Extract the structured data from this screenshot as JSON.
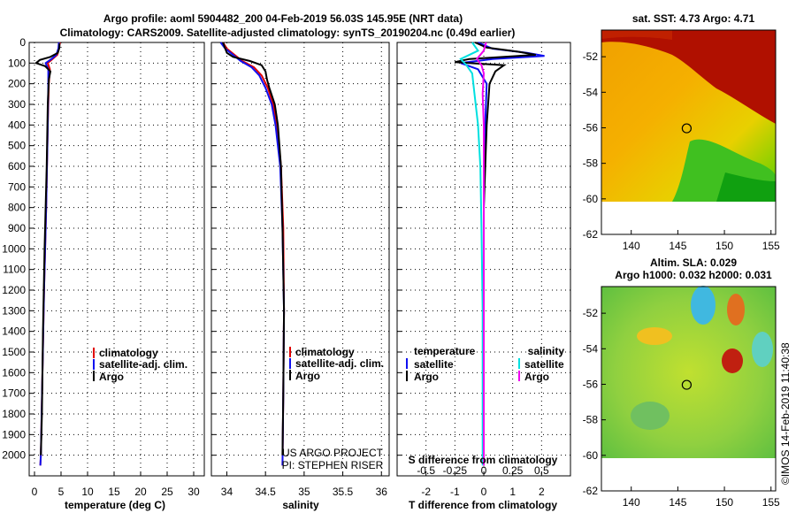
{
  "title_line1": "Argo profile: aoml 5904482_200 04-Feb-2019 56.03S 145.95E (NRT data)",
  "title_line2": "Climatology: CARS2009. Satellite-adjusted climatology: synTS_20190204.nc (0.49d earlier)",
  "credit_line1": "US ARGO PROJECT",
  "credit_line2": "PI: STEPHEN RISER",
  "watermark": "©IMOS 14-Feb-2019 11:40:38",
  "colors": {
    "climatology": "#e00000",
    "satellite": "#1010f0",
    "argo": "#000000",
    "sal_satellite": "#00e0e0",
    "sal_argo": "#f000f0"
  },
  "chart_data": [
    {
      "type": "line",
      "id": "temperature",
      "xlabel": "temperature (deg C)",
      "ylabel": "depth",
      "xlim": [
        -1,
        32
      ],
      "ylim": [
        0,
        2100
      ],
      "xticks": [
        0,
        5,
        10,
        15,
        20,
        25,
        30
      ],
      "yticks": [
        0,
        100,
        200,
        300,
        400,
        500,
        600,
        700,
        800,
        900,
        1000,
        1100,
        1200,
        1300,
        1400,
        1500,
        1600,
        1700,
        1800,
        1900,
        2000
      ],
      "legend": [
        "climatology",
        "satellite-adj. clim.",
        "Argo"
      ],
      "series": [
        {
          "name": "climatology",
          "depth": [
            0,
            30,
            60,
            80,
            100,
            130,
            200,
            400,
            800,
            1200,
            1600,
            2000,
            2050
          ],
          "values": [
            4.8,
            4.6,
            4.3,
            3.4,
            2.5,
            2.9,
            2.7,
            2.5,
            2.2,
            1.8,
            1.5,
            1.2,
            1.1
          ]
        },
        {
          "name": "satellite-adj. clim.",
          "depth": [
            0,
            30,
            60,
            80,
            100,
            130,
            200,
            400,
            800,
            1200,
            1600,
            2000,
            2050
          ],
          "values": [
            4.6,
            4.5,
            4.1,
            3.2,
            2.1,
            2.6,
            2.6,
            2.5,
            2.2,
            1.8,
            1.5,
            1.2,
            1.1
          ]
        },
        {
          "name": "Argo",
          "depth": [
            5,
            25,
            50,
            70,
            85,
            100,
            115,
            140,
            180,
            300,
            600,
            1000,
            1400,
            1800,
            2000
          ],
          "values": [
            4.7,
            4.7,
            4.4,
            3.0,
            1.0,
            0.3,
            2.0,
            3.0,
            2.7,
            2.5,
            2.3,
            1.9,
            1.6,
            1.4,
            1.2
          ]
        }
      ]
    },
    {
      "type": "line",
      "id": "salinity",
      "xlabel": "salinity",
      "ylabel": "depth",
      "xlim": [
        33.8,
        36.1
      ],
      "ylim": [
        0,
        2100
      ],
      "xticks": [
        34,
        34.5,
        35,
        35.5,
        36
      ],
      "legend": [
        "climatology",
        "satellite-adj. clim.",
        "Argo"
      ],
      "series": [
        {
          "name": "climatology",
          "depth": [
            0,
            30,
            60,
            90,
            120,
            160,
            220,
            300,
            400,
            600,
            900,
            1300,
            1700,
            2050
          ],
          "values": [
            33.95,
            34.0,
            34.1,
            34.2,
            34.35,
            34.45,
            34.53,
            34.6,
            34.65,
            34.7,
            34.73,
            34.74,
            34.73,
            34.72
          ]
        },
        {
          "name": "satellite-adj. clim.",
          "depth": [
            0,
            30,
            60,
            90,
            120,
            160,
            220,
            300,
            400,
            600,
            900,
            1300,
            1700,
            2050
          ],
          "values": [
            33.92,
            33.98,
            34.08,
            34.18,
            34.32,
            34.42,
            34.5,
            34.58,
            34.63,
            34.69,
            34.72,
            34.74,
            34.73,
            34.72
          ]
        },
        {
          "name": "Argo",
          "depth": [
            0,
            30,
            50,
            70,
            90,
            110,
            140,
            180,
            220,
            300,
            400,
            600,
            900,
            1300,
            1700,
            2000
          ],
          "values": [
            33.95,
            33.98,
            34.0,
            34.08,
            34.3,
            34.45,
            34.5,
            34.52,
            34.55,
            34.62,
            34.66,
            34.7,
            34.72,
            34.74,
            34.73,
            34.72
          ]
        }
      ]
    },
    {
      "type": "line",
      "id": "difference",
      "xlabel": "T difference from climatology",
      "xlabel_top": "S difference from climatology",
      "ylabel": "depth",
      "xlim": [
        -3,
        3
      ],
      "ylim": [
        0,
        2100
      ],
      "xticks": [
        -2,
        -1,
        0,
        1,
        2
      ],
      "xticks_salinity": [
        -0.5,
        -0.25,
        0,
        0.25,
        0.5
      ],
      "xtick_labels_salinity": [
        "-0.5",
        "-0.25",
        "0",
        "0.25",
        "0.5"
      ],
      "legend_temperature_title": "temperature",
      "legend_salinity_title": "salinity",
      "legend_temperature": [
        "satellite",
        "Argo"
      ],
      "legend_salinity": [
        "satellite",
        "Argo"
      ],
      "series": [
        {
          "name": "T satellite",
          "depth": [
            0,
            30,
            50,
            65,
            80,
            100,
            130,
            200,
            400,
            800,
            1200,
            1600,
            2050
          ],
          "values": [
            -0.2,
            0.3,
            1.5,
            2.1,
            0.3,
            -0.8,
            -0.2,
            0.1,
            0.05,
            0.0,
            0.0,
            0.0,
            0.0
          ]
        },
        {
          "name": "T Argo",
          "depth": [
            0,
            25,
            45,
            60,
            80,
            95,
            110,
            140,
            200,
            400,
            800,
            1200,
            1600,
            2050
          ],
          "values": [
            -0.3,
            0.1,
            1.2,
            1.8,
            -0.5,
            -1.0,
            0.7,
            0.4,
            0.2,
            0.1,
            0.0,
            0.0,
            0.0,
            0.0
          ]
        },
        {
          "name": "S satellite",
          "depth": [
            0,
            40,
            80,
            110,
            150,
            250,
            400,
            600,
            900,
            1300,
            1700,
            2050
          ],
          "values": [
            -0.1,
            -0.05,
            -0.2,
            -0.15,
            -0.1,
            -0.08,
            -0.05,
            -0.03,
            -0.02,
            -0.01,
            -0.01,
            -0.01
          ]
        },
        {
          "name": "S Argo",
          "depth": [
            0,
            40,
            80,
            110,
            150,
            250,
            400,
            800,
            1300,
            1700,
            2050
          ],
          "values": [
            0.02,
            0.0,
            -0.06,
            -0.02,
            0.0,
            -0.01,
            0.0,
            0.0,
            0.0,
            0.0,
            0.0
          ]
        }
      ]
    },
    {
      "type": "heatmap",
      "id": "sst_map",
      "title": "sat. SST: 4.73 Argo: 4.71",
      "xticks": [
        140,
        145,
        150,
        155
      ],
      "yticks": [
        -52,
        -54,
        -56,
        -58,
        -60,
        -62
      ],
      "xlim": [
        136.8,
        155.5
      ],
      "ylim": [
        -62,
        -50.5
      ],
      "profile_lon": 145.95,
      "profile_lat": -56.03
    },
    {
      "type": "heatmap",
      "id": "sla_map",
      "title_line1": "Altim. SLA: 0.029",
      "title_line2": "Argo h1000: 0.032 h2000: 0.031",
      "xticks": [
        140,
        145,
        150,
        155
      ],
      "yticks": [
        -52,
        -54,
        -56,
        -58,
        -60,
        -62
      ],
      "xlim": [
        136.8,
        155.5
      ],
      "ylim": [
        -62,
        -50.5
      ],
      "profile_lon": 145.95,
      "profile_lat": -56.03
    }
  ]
}
